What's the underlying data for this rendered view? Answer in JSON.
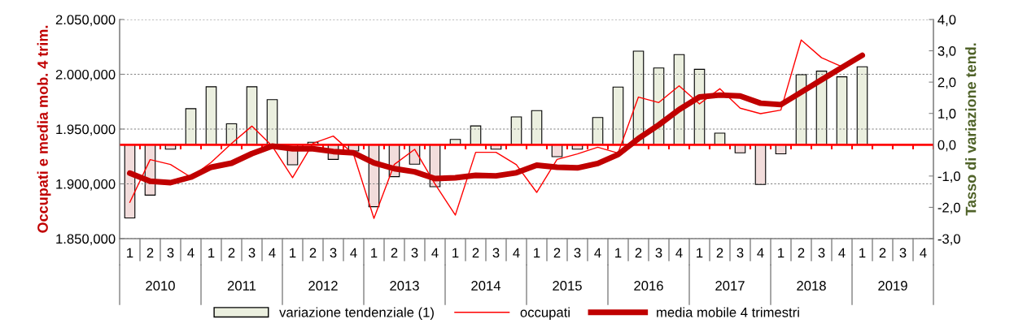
{
  "chart_data": {
    "type": "line",
    "ylabel": "Occupati e media mob. 4 trim.",
    "y2label": "Tasso di variazione tend.",
    "categories": [
      "1",
      "2",
      "3",
      "4",
      "1",
      "2",
      "3",
      "4",
      "1",
      "2",
      "3",
      "4",
      "1",
      "2",
      "3",
      "4",
      "1",
      "2",
      "3",
      "4",
      "1",
      "2",
      "3",
      "4",
      "1",
      "2",
      "3",
      "4",
      "1",
      "2",
      "3",
      "4",
      "1",
      "2",
      "3",
      "4",
      "1",
      "2",
      "3",
      "4"
    ],
    "annotations": [
      "2010",
      "2011",
      "2012",
      "2013",
      "2014",
      "2015",
      "2016",
      "2017",
      "2018",
      "2019"
    ],
    "series": [
      {
        "name": "variazione tendenziale (1)",
        "type": "bar",
        "axis": "y2",
        "color": "#ebefdf",
        "colors": [
          "#f2dcdb",
          "#f2dcdb",
          "#f2dcdb",
          "#ebefdf",
          "#ebefdf",
          "#ebefdf",
          "#ebefdf",
          "#ebefdf",
          "#f2dcdb",
          "#ebefdf",
          "#f2dcdb",
          "#f2dcdb",
          "#f2dcdb",
          "#f2dcdb",
          "#f2dcdb",
          "#f2dcdb",
          "#ebefdf",
          "#ebefdf",
          "#f2dcdb",
          "#ebefdf",
          "#ebefdf",
          "#f2dcdb",
          "#f2dcdb",
          "#ebefdf",
          "#ebefdf",
          "#ebefdf",
          "#ebefdf",
          "#ebefdf",
          "#ebefdf",
          "#ebefdf",
          "#f2dcdb",
          "#f2dcdb",
          "#f2dcdb",
          "#ebefdf",
          "#ebefdf",
          "#ebefdf",
          "#ebefdf",
          null,
          null,
          null
        ],
        "values": [
          -2.34,
          -1.61,
          -0.14,
          1.15,
          1.85,
          0.67,
          1.85,
          1.44,
          -0.64,
          0.08,
          -0.47,
          -0.2,
          -1.98,
          -1.02,
          -0.62,
          -1.34,
          0.17,
          0.6,
          -0.14,
          0.89,
          1.09,
          -0.38,
          -0.14,
          0.87,
          1.84,
          2.99,
          2.45,
          2.88,
          2.41,
          0.37,
          -0.26,
          -1.27,
          -0.29,
          2.24,
          2.35,
          2.17,
          2.49,
          null,
          null,
          null
        ]
      },
      {
        "name": "occupati",
        "color": "#ff0000",
        "values": [
          1883.1,
          1922.1,
          1917.7,
          1906.1,
          1919.6,
          1936.9,
          1952.7,
          1934.4,
          1905.6,
          1936.9,
          1943.6,
          1927.0,
          1868.5,
          1917.7,
          1931.5,
          1899.9,
          1871.5,
          1928.8,
          1928.8,
          1917.5,
          1892.2,
          1922.3,
          1927.3,
          1933.4,
          1928.1,
          1979.2,
          1974.2,
          1989.5,
          1973.0,
          1986.8,
          1969.1,
          1964.1,
          1967.3,
          2031.3,
          2015.1,
          2007.0,
          null,
          null,
          null,
          null
        ]
      },
      {
        "name": "media mobile 4 trimestri",
        "color": "#c00000",
        "values": [
          1909.8,
          1902.4,
          1901.1,
          1906.1,
          1915.2,
          1918.9,
          1927.6,
          1934.4,
          1932.0,
          1932.0,
          1929.5,
          1928.3,
          1919.2,
          1913.9,
          1911.0,
          1904.8,
          1905.6,
          1907.8,
          1907.3,
          1910.1,
          1917.0,
          1915.2,
          1914.6,
          1918.6,
          1926.8,
          1941.3,
          1953.8,
          1967.8,
          1979.2,
          1981.0,
          1980.2,
          1973.6,
          1972.3,
          1983.6,
          1995.0,
          2006.2,
          2017.3,
          null,
          null,
          null
        ]
      }
    ],
    "ylim": [
      1850,
      2050
    ],
    "yticks": [
      {
        "value": 1850,
        "label": "1.850,000"
      },
      {
        "value": 1900,
        "label": "1.900,000"
      },
      {
        "value": 1950,
        "label": "1.950,000"
      },
      {
        "value": 2000,
        "label": "2.000,000"
      },
      {
        "value": 2050,
        "label": "2.050,000"
      }
    ],
    "y2lim": [
      -3,
      4
    ],
    "y2ticks": [
      {
        "value": -3,
        "label": "-3,0"
      },
      {
        "value": -2,
        "label": "-2,0"
      },
      {
        "value": -1,
        "label": "-1,0"
      },
      {
        "value": 0,
        "label": "0,0"
      },
      {
        "value": 1,
        "label": "1,0"
      },
      {
        "value": 2,
        "label": "2,0"
      },
      {
        "value": 3,
        "label": "3,0"
      },
      {
        "value": 4,
        "label": "4,0"
      }
    ],
    "ref_lines": [
      {
        "axis": "y2",
        "value": 0,
        "label": null,
        "color": "#ff0000",
        "line_style": "solid"
      }
    ],
    "grid": "y",
    "legend": "bottom"
  }
}
